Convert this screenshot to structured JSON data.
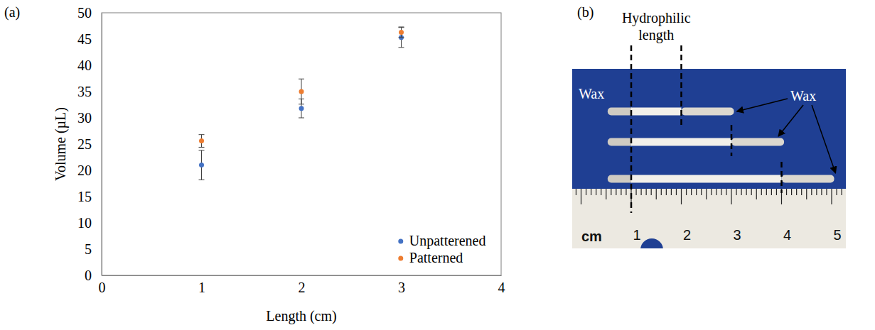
{
  "chart_data": {
    "type": "scatter",
    "panel_label": "(a)",
    "x_label": "Length (cm)",
    "y_label": "Volume (µL)",
    "x": [
      1,
      2,
      3
    ],
    "series": [
      {
        "name": "Unpatterened",
        "color": "#4472c4",
        "marker": "circle",
        "values": [
          21.0,
          31.8,
          45.3
        ],
        "errors": [
          2.8,
          1.8,
          1.9
        ]
      },
      {
        "name": "Patterned",
        "color": "#ed7d31",
        "marker": "circle",
        "values": [
          25.6,
          35.0,
          46.3
        ],
        "errors": [
          1.2,
          2.4,
          1.0
        ]
      }
    ],
    "xlim": [
      0,
      4
    ],
    "xticks": [
      0,
      1,
      2,
      3,
      4
    ],
    "ylim": [
      0,
      50
    ],
    "yticks": [
      0,
      5,
      10,
      15,
      20,
      25,
      30,
      35,
      40,
      45,
      50
    ],
    "grid": false,
    "legend": "lower right"
  },
  "panel_b": {
    "type": "photo",
    "panel_label": "(b)",
    "hydrophilic_label": "Hydrophilic length",
    "wax_labels": [
      "Wax",
      "Wax"
    ],
    "ruler": {
      "unit": "cm",
      "ticks": [
        1,
        2,
        3,
        4,
        5
      ]
    },
    "hydrophilic_start": 1,
    "hydrophilic_lengths": [
      1,
      2,
      3
    ]
  }
}
